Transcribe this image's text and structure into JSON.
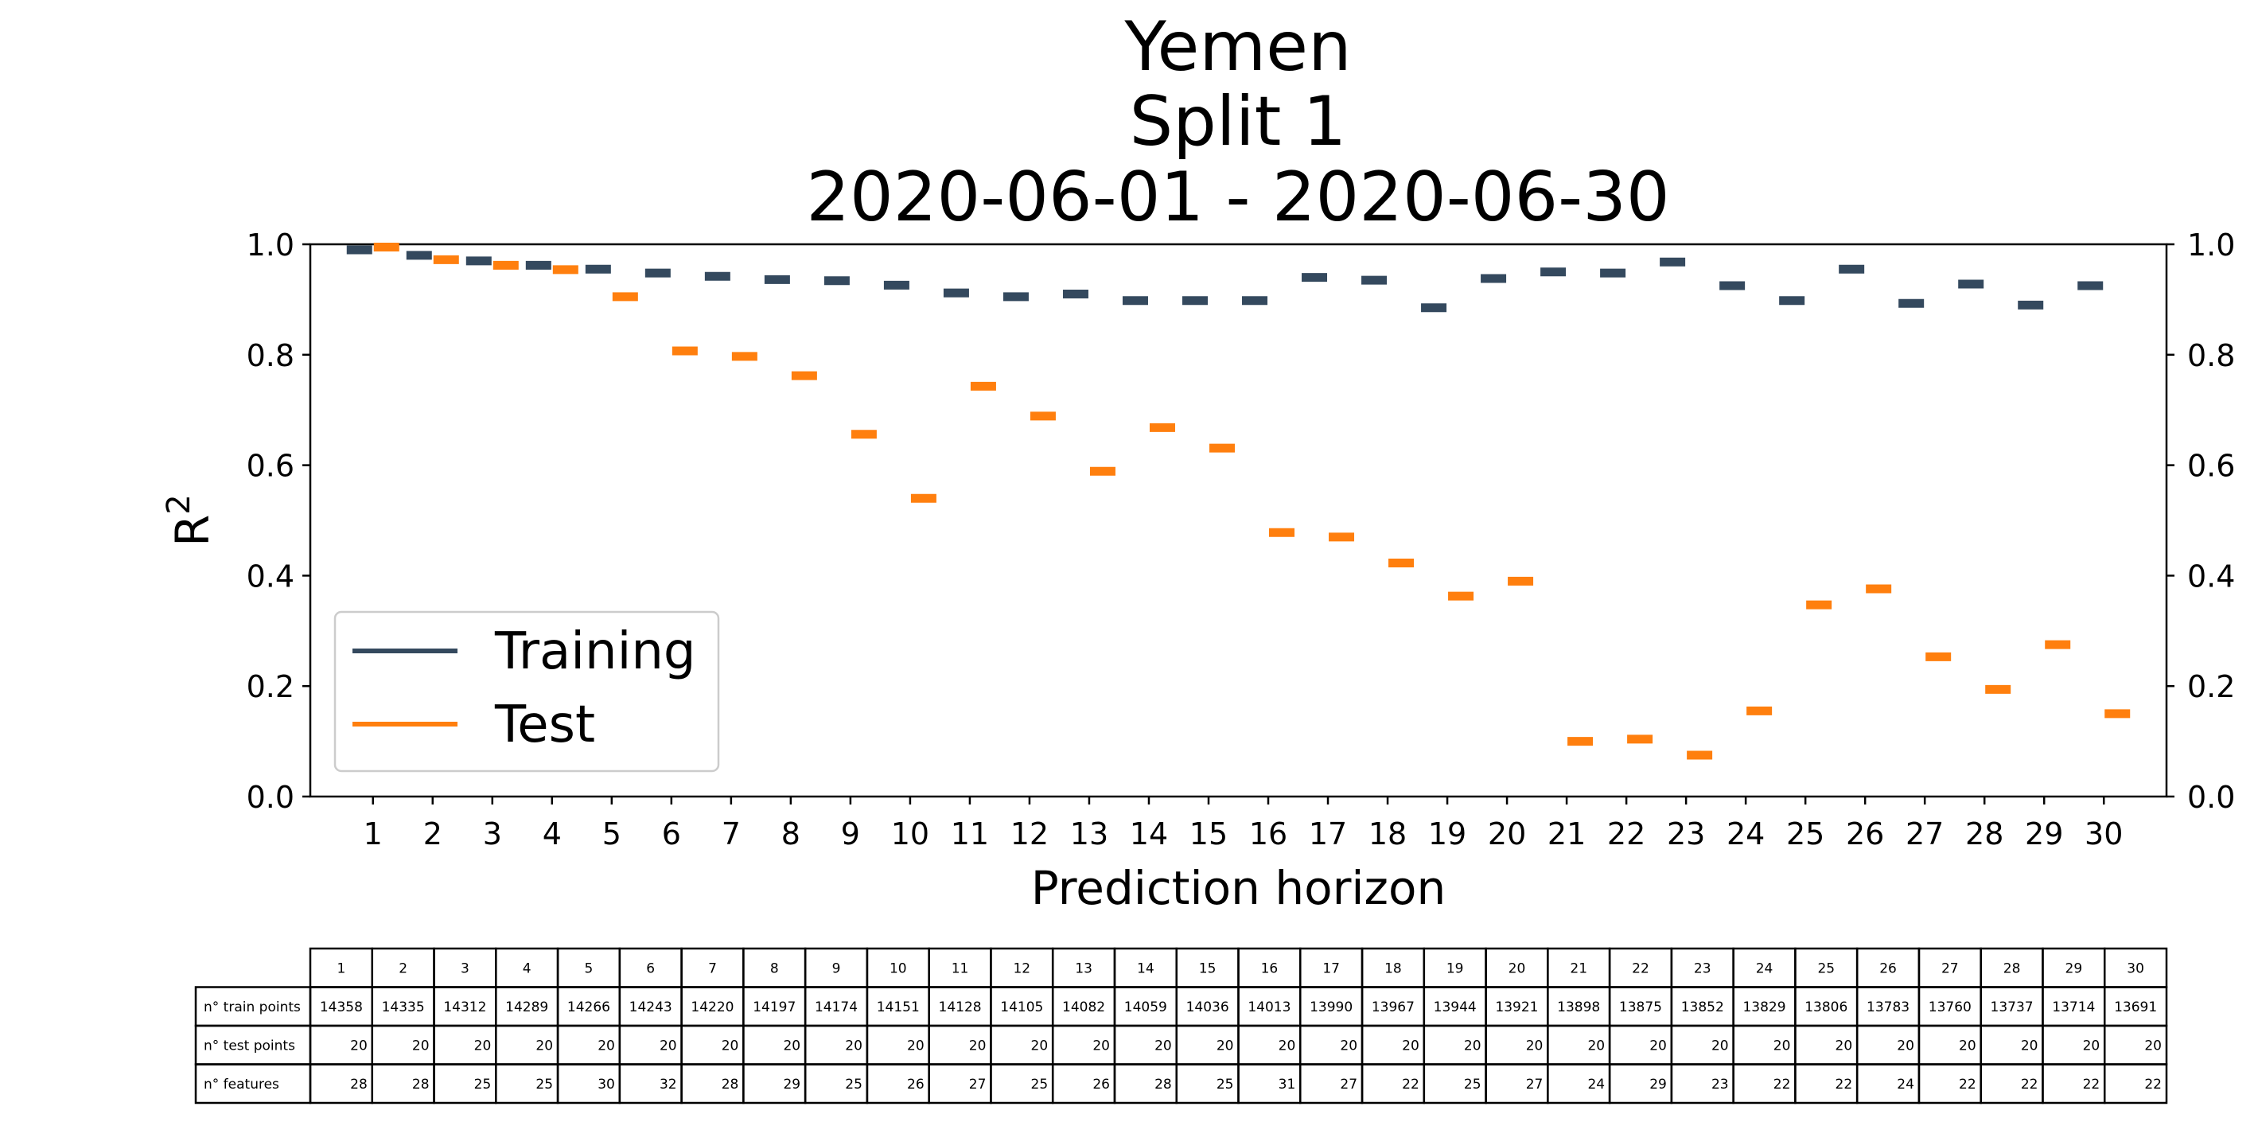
{
  "chart_data": {
    "type": "scatter",
    "title_lines": [
      "Yemen",
      "Split 1",
      "2020-06-01 - 2020-06-30"
    ],
    "xlabel": "Prediction horizon",
    "ylabel": "R",
    "ylabel_superscript": "2",
    "x": [
      1,
      2,
      3,
      4,
      5,
      6,
      7,
      8,
      9,
      10,
      11,
      12,
      13,
      14,
      15,
      16,
      17,
      18,
      19,
      20,
      21,
      22,
      23,
      24,
      25,
      26,
      27,
      28,
      29,
      30
    ],
    "xlim": [
      -0.05,
      31.05
    ],
    "ylim": [
      0.0,
      1.0
    ],
    "yticks": [
      "0.0",
      "0.2",
      "0.4",
      "0.6",
      "0.8",
      "1.0"
    ],
    "grid": false,
    "legend_position": "lower-left",
    "series": [
      {
        "name": "Training",
        "color": "#34495e",
        "values": [
          0.99,
          0.98,
          0.97,
          0.962,
          0.955,
          0.948,
          0.942,
          0.936,
          0.934,
          0.926,
          0.912,
          0.905,
          0.91,
          0.898,
          0.898,
          0.898,
          0.94,
          0.935,
          0.885,
          0.938,
          0.95,
          0.948,
          0.968,
          0.925,
          0.898,
          0.955,
          0.893,
          0.928,
          0.89,
          0.925
        ]
      },
      {
        "name": "Test",
        "color": "#ff7f0e",
        "values": [
          0.995,
          0.972,
          0.962,
          0.954,
          0.905,
          0.807,
          0.797,
          0.762,
          0.656,
          0.54,
          0.743,
          0.689,
          0.589,
          0.668,
          0.631,
          0.478,
          0.47,
          0.423,
          0.363,
          0.39,
          0.1,
          0.104,
          0.075,
          0.155,
          0.347,
          0.376,
          0.253,
          0.194,
          0.275,
          0.15
        ]
      }
    ],
    "table": {
      "header": [
        "1",
        "2",
        "3",
        "4",
        "5",
        "6",
        "7",
        "8",
        "9",
        "10",
        "11",
        "12",
        "13",
        "14",
        "15",
        "16",
        "17",
        "18",
        "19",
        "20",
        "21",
        "22",
        "23",
        "24",
        "25",
        "26",
        "27",
        "28",
        "29",
        "30"
      ],
      "rows": [
        {
          "label": "n° train points",
          "values": [
            "14358",
            "14335",
            "14312",
            "14289",
            "14266",
            "14243",
            "14220",
            "14197",
            "14174",
            "14151",
            "14128",
            "14105",
            "14082",
            "14059",
            "14036",
            "14013",
            "13990",
            "13967",
            "13944",
            "13921",
            "13898",
            "13875",
            "13852",
            "13829",
            "13806",
            "13783",
            "13760",
            "13737",
            "13714",
            "13691"
          ]
        },
        {
          "label": "n° test points",
          "values": [
            "20",
            "20",
            "20",
            "20",
            "20",
            "20",
            "20",
            "20",
            "20",
            "20",
            "20",
            "20",
            "20",
            "20",
            "20",
            "20",
            "20",
            "20",
            "20",
            "20",
            "20",
            "20",
            "20",
            "20",
            "20",
            "20",
            "20",
            "20",
            "20",
            "20"
          ]
        },
        {
          "label": "n° features",
          "values": [
            "28",
            "28",
            "25",
            "25",
            "30",
            "32",
            "28",
            "29",
            "25",
            "26",
            "27",
            "25",
            "26",
            "28",
            "25",
            "31",
            "27",
            "22",
            "25",
            "27",
            "24",
            "29",
            "23",
            "22",
            "22",
            "24",
            "22",
            "22",
            "22",
            "22"
          ]
        }
      ]
    }
  }
}
